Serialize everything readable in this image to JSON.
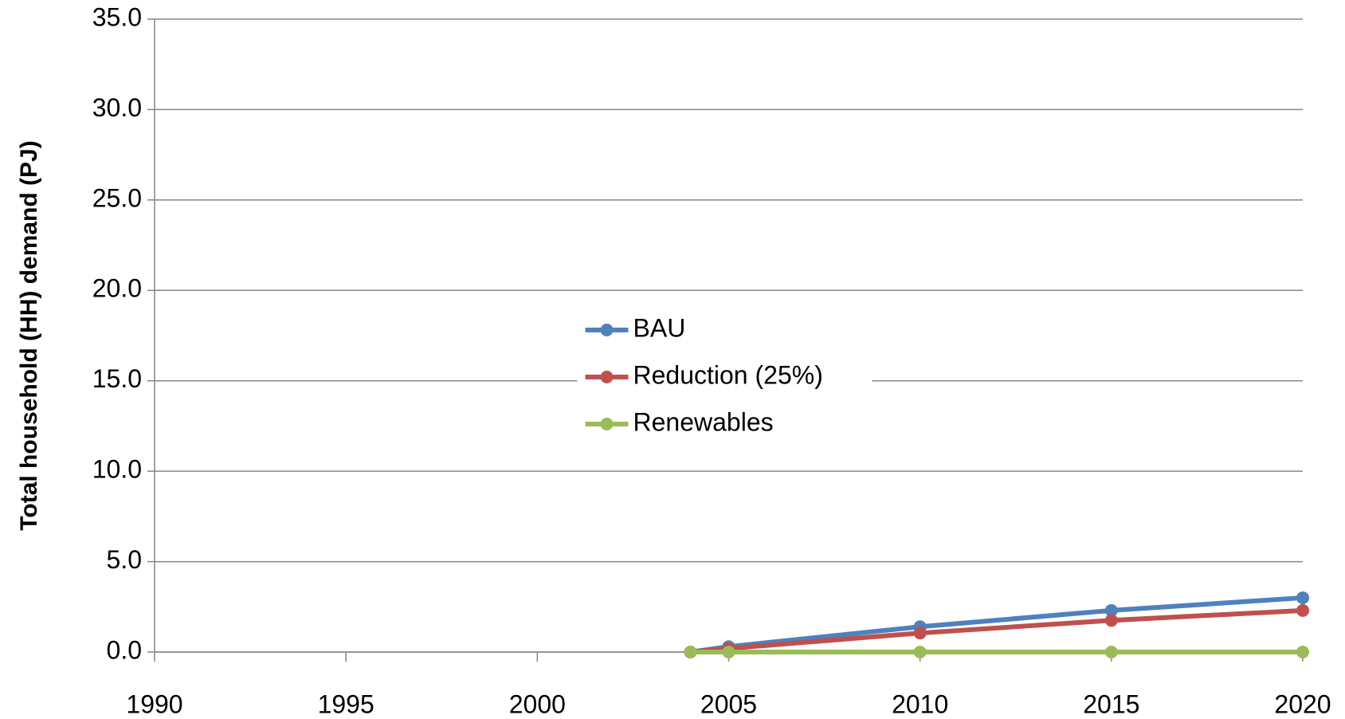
{
  "chart_data": {
    "type": "line",
    "y_label": "Total household (HH) demand (PJ)",
    "x": [
      2004,
      2005,
      2010,
      2015,
      2020
    ],
    "series": [
      {
        "name": "BAU",
        "color": "#4f81bd",
        "values": [
          0,
          0.3,
          1.4,
          2.3,
          3.0
        ]
      },
      {
        "name": "Reduction (25%)",
        "color": "#c0504d",
        "values": [
          0,
          0.2,
          1.05,
          1.75,
          2.3
        ]
      },
      {
        "name": "Renewables",
        "color": "#9bbb59",
        "values": [
          0,
          0,
          0,
          0,
          0
        ]
      }
    ],
    "xlim": [
      1990,
      2020
    ],
    "xticks": [
      1990,
      1995,
      2000,
      2005,
      2010,
      2015,
      2020
    ],
    "ylim": [
      0,
      35
    ],
    "yticks": [
      {
        "value": 0,
        "label": "0.0"
      },
      {
        "value": 5,
        "label": "5.0"
      },
      {
        "value": 10,
        "label": "10.0"
      },
      {
        "value": 15,
        "label": "15.0"
      },
      {
        "value": 20,
        "label": "20.0"
      },
      {
        "value": 25,
        "label": "25.0"
      },
      {
        "value": 30,
        "label": "30.0"
      },
      {
        "value": 35,
        "label": "35.0"
      }
    ],
    "grid": true,
    "legend": "center"
  }
}
